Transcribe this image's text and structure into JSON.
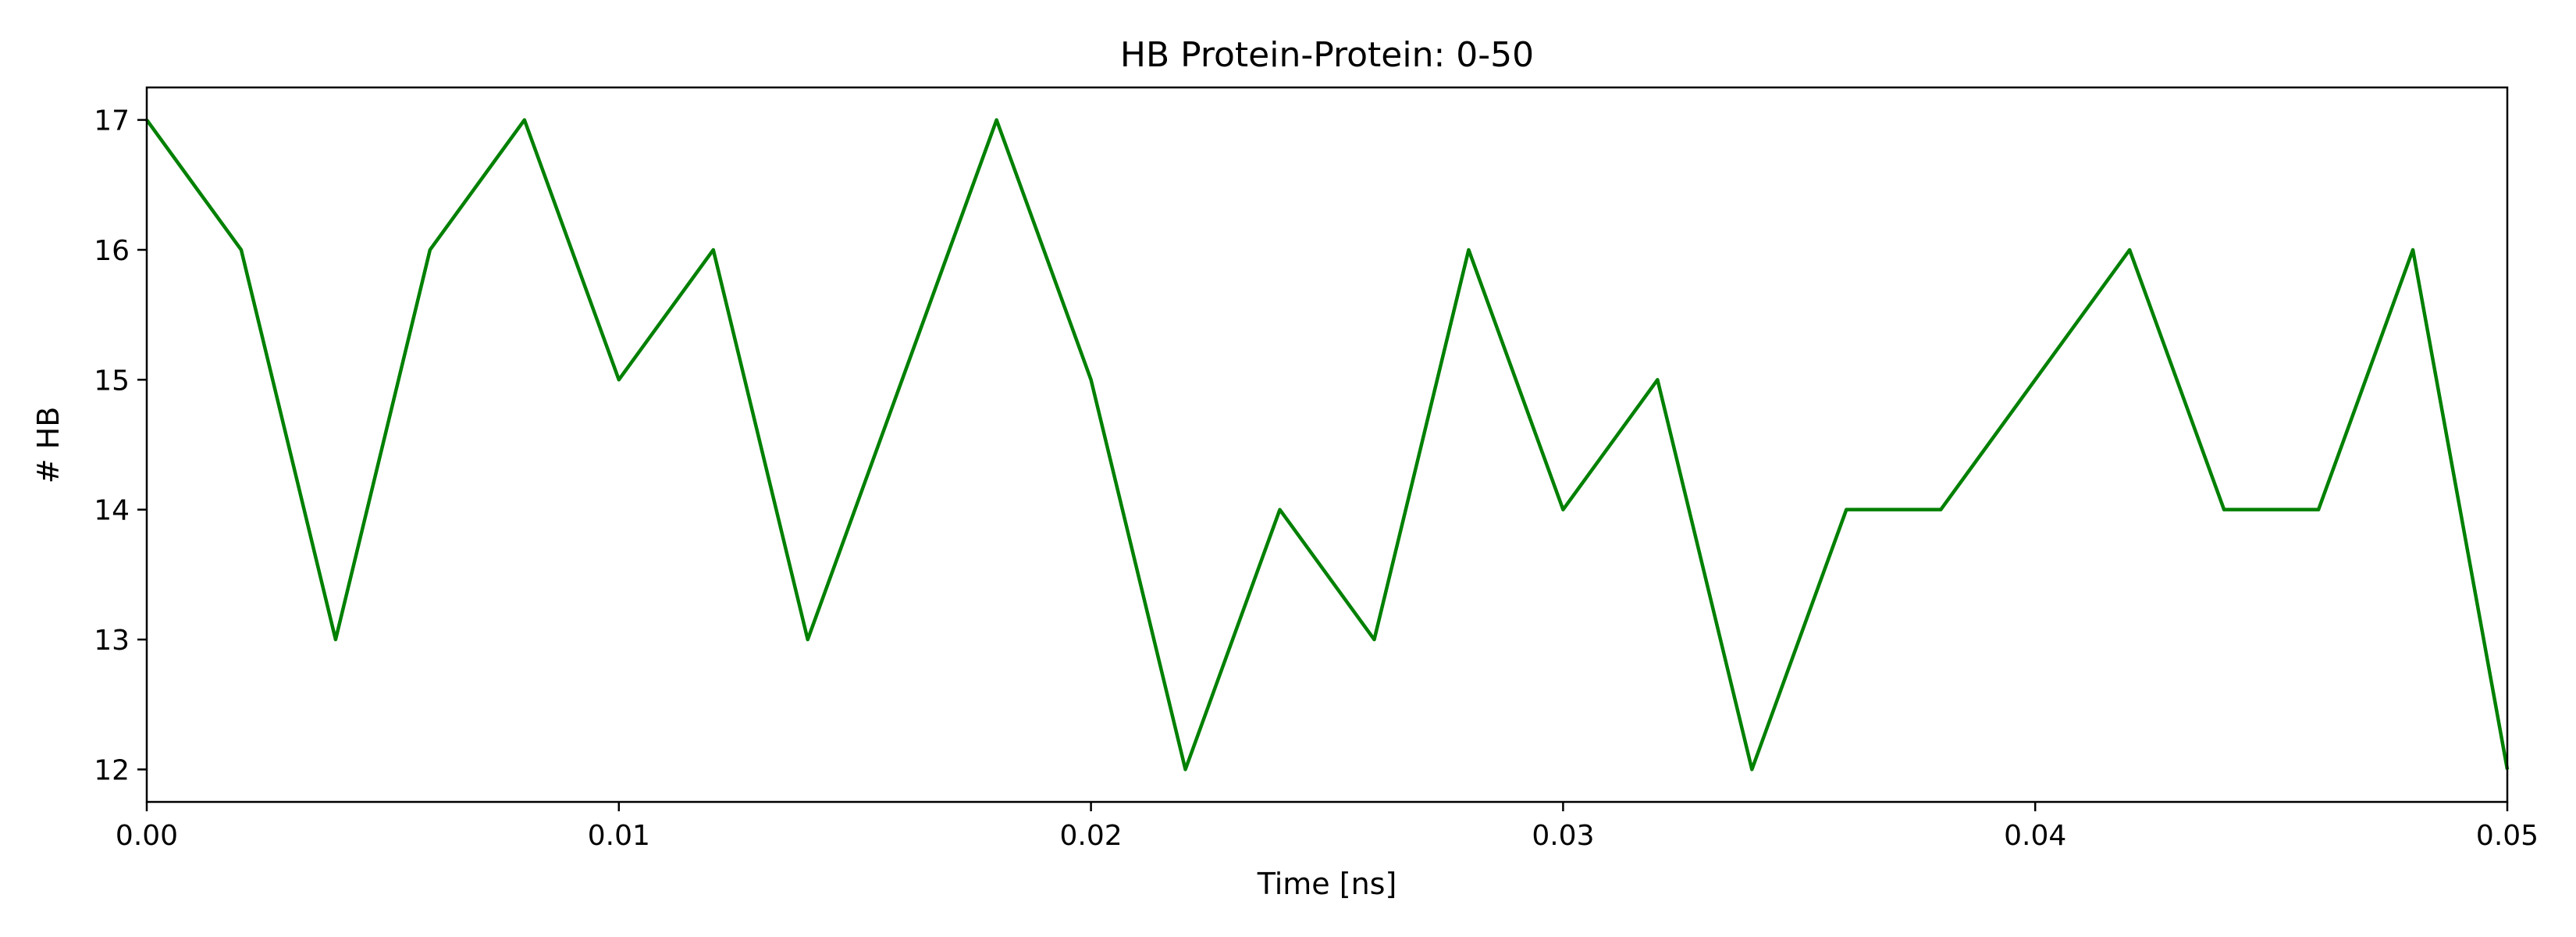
{
  "chart_data": {
    "type": "line",
    "title": "HB Protein-Protein: 0-50",
    "xlabel": "Time [ns]",
    "ylabel": "# HB",
    "xlim": [
      0,
      0.05
    ],
    "ylim": [
      11.75,
      17.25
    ],
    "xticks": [
      "0.00",
      "0.01",
      "0.02",
      "0.03",
      "0.04",
      "0.05"
    ],
    "xtick_values": [
      0,
      0.01,
      0.02,
      0.03,
      0.04,
      0.05
    ],
    "yticks": [
      "12",
      "13",
      "14",
      "15",
      "16",
      "17"
    ],
    "ytick_values": [
      12,
      13,
      14,
      15,
      16,
      17
    ],
    "grid": false,
    "series": [
      {
        "color": "#008000",
        "x": [
          0,
          0.002,
          0.004,
          0.006,
          0.008,
          0.01,
          0.012,
          0.014,
          0.016,
          0.018,
          0.02,
          0.022,
          0.024,
          0.026,
          0.028,
          0.03,
          0.032,
          0.034,
          0.036,
          0.038,
          0.04,
          0.042,
          0.044,
          0.046,
          0.048,
          0.05
        ],
        "y": [
          17,
          16,
          13,
          16,
          17,
          15,
          16,
          13,
          15,
          17,
          15,
          12,
          14,
          13,
          16,
          14,
          15,
          12,
          14,
          14,
          15,
          16,
          14,
          14,
          16,
          12
        ]
      }
    ]
  }
}
